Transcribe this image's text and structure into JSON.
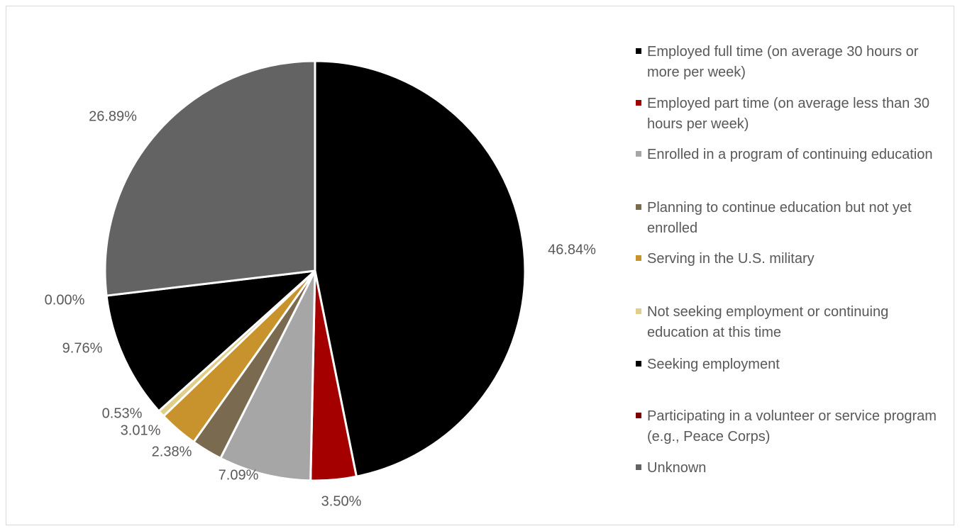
{
  "chart_data": {
    "type": "pie",
    "title": "",
    "legend_position": "right",
    "categories": [
      "Employed full time (on average 30 hours or more per week)",
      "Employed part time (on average less than 30 hours per week)",
      "Enrolled in a program of continuing education",
      "Planning to continue education  but not yet enrolled",
      "Serving in the U.S. military",
      "Not seeking employment or continuing education at this time",
      "Seeking employment",
      "Participating in a volunteer or service program (e.g., Peace Corps)",
      "Unknown"
    ],
    "values": [
      46.84,
      3.5,
      7.09,
      2.38,
      3.01,
      0.53,
      9.76,
      0.0,
      26.89
    ],
    "value_labels": [
      "46.84%",
      "3.50%",
      "7.09%",
      "2.38%",
      "3.01%",
      "0.53%",
      "9.76%",
      "0.00%",
      "26.89%"
    ],
    "colors": [
      "#000000",
      "#a50000",
      "#a6a6a6",
      "#7a6a4f",
      "#c8922c",
      "#e0cf8a",
      "#000000",
      "#7a0000",
      "#636363"
    ]
  }
}
